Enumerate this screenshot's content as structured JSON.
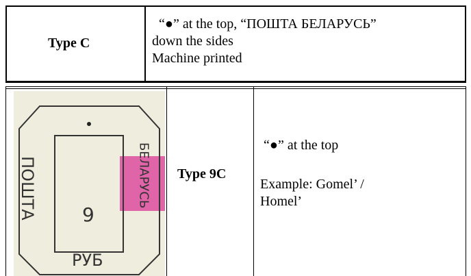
{
  "table1": {
    "label": "Type C",
    "lines": [
      "“●” at the top, “ПОШТА БЕЛАРУСЬ”",
      "down the sides",
      "Machine printed"
    ]
  },
  "table2": {
    "label": "Type 9C",
    "lines": [
      "“●” at the top",
      "Example:  Gomel’ /",
      "Homel’"
    ],
    "stamp": {
      "left": "ПОШТА",
      "bottom": "РУБ",
      "right": "БЕЛАРУСЬ",
      "center": "9"
    }
  }
}
